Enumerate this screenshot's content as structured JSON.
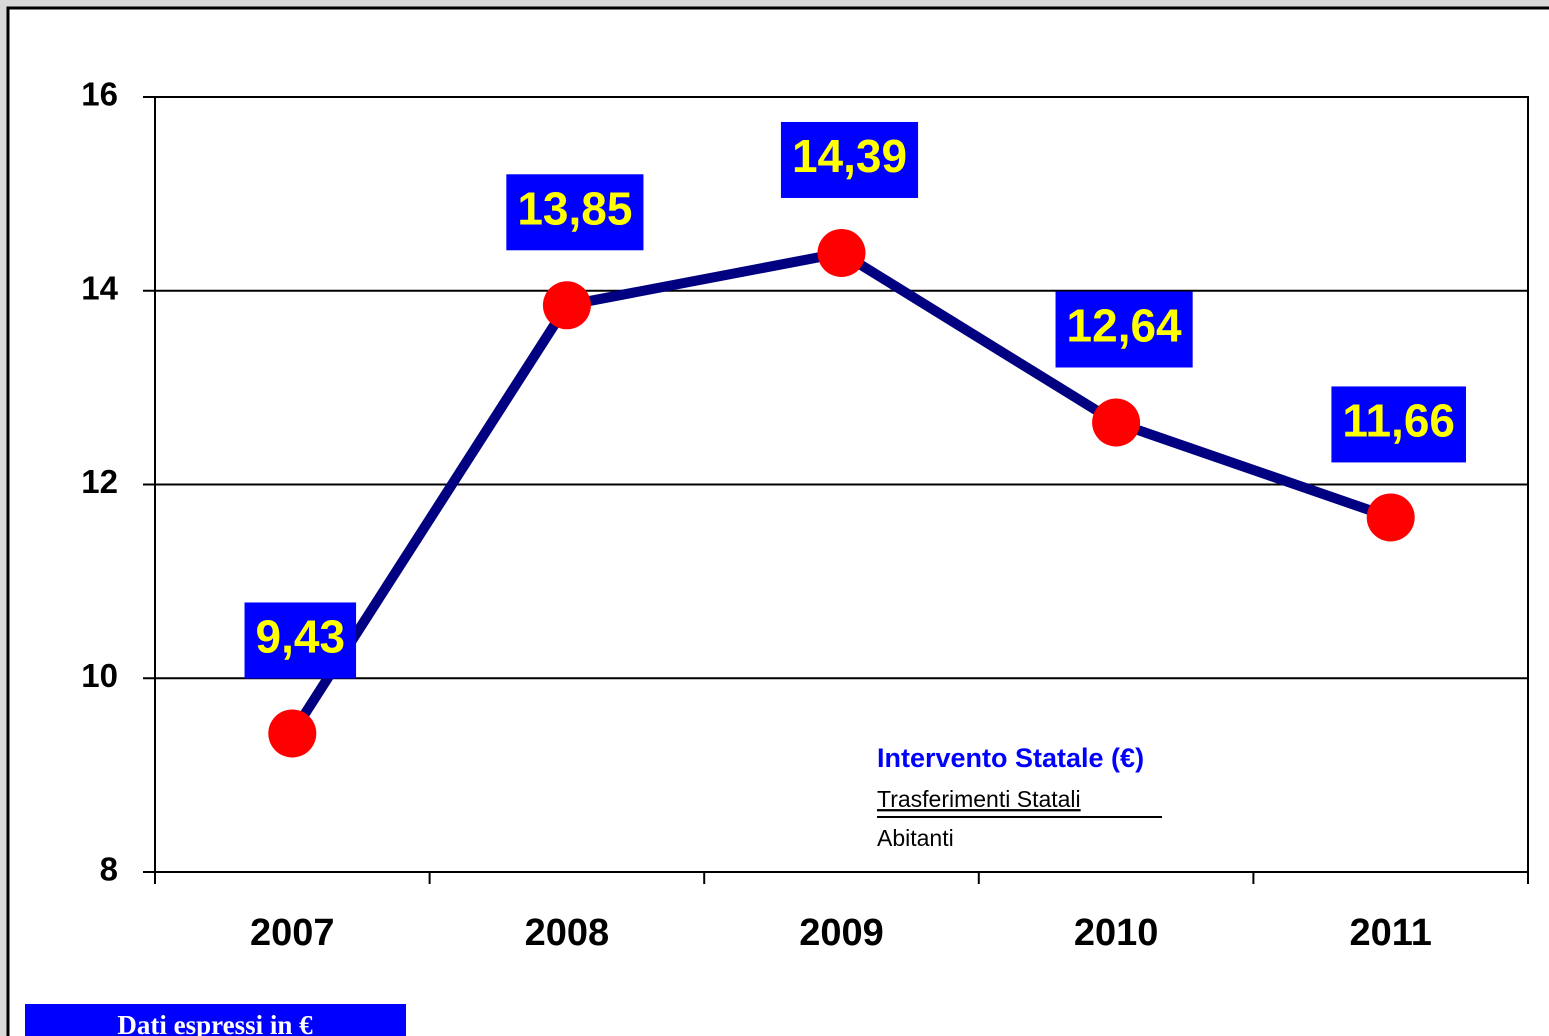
{
  "chart_data": {
    "type": "line",
    "categories": [
      "2007",
      "2008",
      "2009",
      "2010",
      "2011"
    ],
    "series": [
      {
        "name": "Intervento Statale",
        "color": "#000080",
        "marker_color": "#ff0000",
        "values": [
          9.43,
          13.85,
          14.39,
          12.64,
          11.66
        ],
        "value_labels": [
          "9,43",
          "13,85",
          "14,39",
          "12,64",
          "11,66"
        ]
      }
    ],
    "ylim": [
      8,
      16
    ],
    "yticks": [
      8,
      10,
      12,
      14,
      16
    ],
    "grid": true,
    "annotation": {
      "title": "Intervento Statale  (€)",
      "numerator": "Trasferimenti Statali",
      "denominator": "Abitanti"
    },
    "footnote": "Dati espressi in €"
  }
}
